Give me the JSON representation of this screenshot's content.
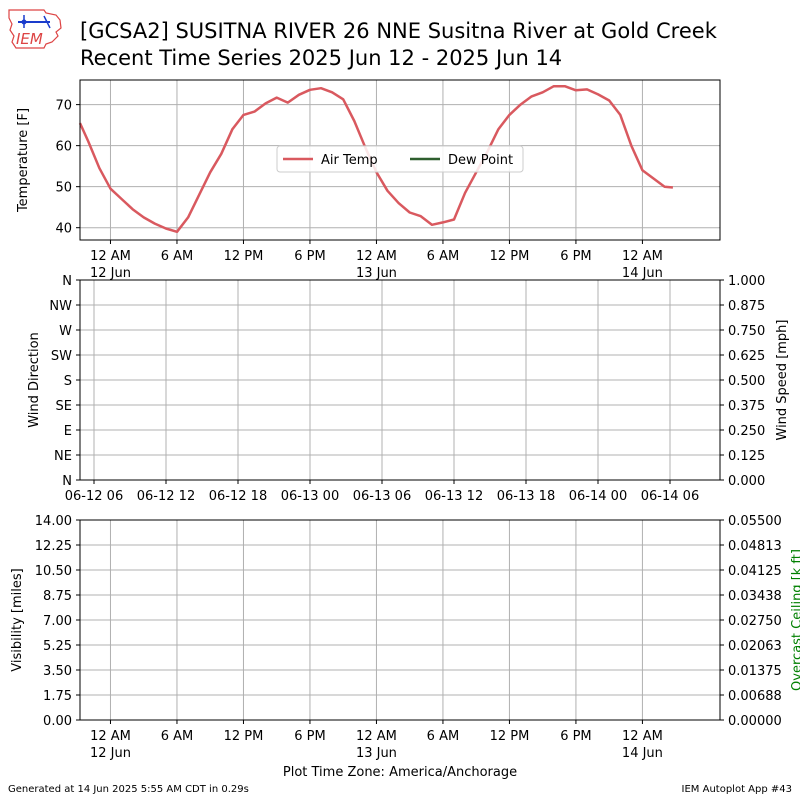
{
  "header": {
    "title_line1": "[GCSA2] SUSITNA RIVER 26 NNE Susitna River at Gold Creek",
    "title_line2": "Recent Time Series 2025 Jun 12 - 2025 Jun 14",
    "logo_text": "IEM"
  },
  "footer": {
    "generated": "Generated at 14 Jun 2025 5:55 AM CDT in 0.29s",
    "app": "IEM Autoplot App #43"
  },
  "colors": {
    "air_temp": "#d9595f",
    "dew_point": "#2e5e2e",
    "ceiling_label": "#008000",
    "grid": "#b0b0b0",
    "logo": "#1a3ccc"
  },
  "chart_data": [
    {
      "type": "line",
      "panel": "temperature",
      "ylabel": "Temperature [F]",
      "ylim": [
        37,
        76
      ],
      "yticks": [
        40,
        50,
        60,
        70
      ],
      "xlim": [
        "2025-06-11 21:15",
        "2025-06-14 07:00"
      ],
      "x_ticks": [
        {
          "time": "2025-06-12 00:00",
          "label": "12 AM",
          "sublabel": "12 Jun"
        },
        {
          "time": "2025-06-12 06:00",
          "label": "6 AM",
          "sublabel": ""
        },
        {
          "time": "2025-06-12 12:00",
          "label": "12 PM",
          "sublabel": ""
        },
        {
          "time": "2025-06-12 18:00",
          "label": "6 PM",
          "sublabel": ""
        },
        {
          "time": "2025-06-13 00:00",
          "label": "12 AM",
          "sublabel": "13 Jun"
        },
        {
          "time": "2025-06-13 06:00",
          "label": "6 AM",
          "sublabel": ""
        },
        {
          "time": "2025-06-13 12:00",
          "label": "12 PM",
          "sublabel": ""
        },
        {
          "time": "2025-06-13 18:00",
          "label": "6 PM",
          "sublabel": ""
        },
        {
          "time": "2025-06-14 00:00",
          "label": "12 AM",
          "sublabel": "14 Jun"
        }
      ],
      "legend": {
        "position": "center",
        "entries": [
          "Air Temp",
          "Dew Point"
        ]
      },
      "grid": true,
      "series": [
        {
          "name": "Air Temp",
          "x": [
            "2025-06-11 21:15",
            "2025-06-11 22:00",
            "2025-06-11 23:00",
            "2025-06-12 00:00",
            "2025-06-12 01:00",
            "2025-06-12 02:00",
            "2025-06-12 03:00",
            "2025-06-12 04:00",
            "2025-06-12 05:00",
            "2025-06-12 06:00",
            "2025-06-12 07:00",
            "2025-06-12 08:00",
            "2025-06-12 09:00",
            "2025-06-12 10:00",
            "2025-06-12 11:00",
            "2025-06-12 12:00",
            "2025-06-12 13:00",
            "2025-06-12 14:00",
            "2025-06-12 15:00",
            "2025-06-12 16:00",
            "2025-06-12 17:00",
            "2025-06-12 18:00",
            "2025-06-12 19:00",
            "2025-06-12 20:00",
            "2025-06-12 21:00",
            "2025-06-12 22:00",
            "2025-06-12 23:00",
            "2025-06-13 00:00",
            "2025-06-13 01:00",
            "2025-06-13 02:00",
            "2025-06-13 03:00",
            "2025-06-13 04:00",
            "2025-06-13 05:00",
            "2025-06-13 06:00",
            "2025-06-13 07:00",
            "2025-06-13 08:00",
            "2025-06-13 09:00",
            "2025-06-13 10:00",
            "2025-06-13 11:00",
            "2025-06-13 12:00",
            "2025-06-13 13:00",
            "2025-06-13 14:00",
            "2025-06-13 15:00",
            "2025-06-13 16:00",
            "2025-06-13 17:00",
            "2025-06-13 18:00",
            "2025-06-13 19:00",
            "2025-06-13 20:00",
            "2025-06-13 21:00",
            "2025-06-13 22:00",
            "2025-06-13 23:00",
            "2025-06-14 00:00",
            "2025-06-14 01:00",
            "2025-06-14 02:00",
            "2025-06-14 02:45"
          ],
          "values": [
            65.5,
            61,
            54.5,
            49.5,
            47,
            44.5,
            42.5,
            41,
            39.8,
            39,
            42.5,
            48,
            53.5,
            58,
            64,
            67.5,
            68.3,
            70.3,
            71.7,
            70.5,
            72.4,
            73.6,
            74,
            73,
            71.3,
            66,
            59.5,
            53.5,
            49,
            46,
            43.7,
            42.8,
            40.7,
            41.3,
            42,
            48.5,
            53.5,
            58.5,
            64,
            67.5,
            70,
            72,
            73,
            74.5,
            74.5,
            73.5,
            73.7,
            72.5,
            71,
            67.5,
            60,
            54,
            52,
            50,
            49.8
          ]
        },
        {
          "name": "Dew Point",
          "x": [],
          "values": []
        }
      ]
    },
    {
      "type": "scatter",
      "panel": "wind",
      "ylabel": "Wind Direction",
      "y2label": "Wind Speed [mph]",
      "yticks": [
        "N",
        "NE",
        "E",
        "SE",
        "S",
        "SW",
        "W",
        "NW",
        "N"
      ],
      "y2ticks": [
        "0.000",
        "0.125",
        "0.250",
        "0.375",
        "0.500",
        "0.625",
        "0.750",
        "0.875",
        "1.000"
      ],
      "y2lim": [
        0,
        1
      ],
      "xticks": [
        "06-12 06",
        "06-12 12",
        "06-12 18",
        "06-13 00",
        "06-13 06",
        "06-13 12",
        "06-13 18",
        "06-14 00",
        "06-14 06"
      ],
      "grid": true,
      "series": []
    },
    {
      "type": "line",
      "panel": "visibility",
      "ylabel": "Visibility [miles]",
      "y2label": "Overcast Ceiling [k ft]",
      "yticks": [
        "0.00",
        "1.75",
        "3.50",
        "5.25",
        "7.00",
        "8.75",
        "10.50",
        "12.25",
        "14.00"
      ],
      "y2ticks": [
        "0.00000",
        "0.00688",
        "0.01375",
        "0.02063",
        "0.02750",
        "0.03438",
        "0.04125",
        "0.04813",
        "0.05500"
      ],
      "ylim": [
        0,
        14
      ],
      "y2lim": [
        0,
        0.055
      ],
      "xlabel": "Plot Time Zone: America/Anchorage",
      "xticks_same_as": "temperature",
      "grid": true,
      "series": []
    }
  ]
}
